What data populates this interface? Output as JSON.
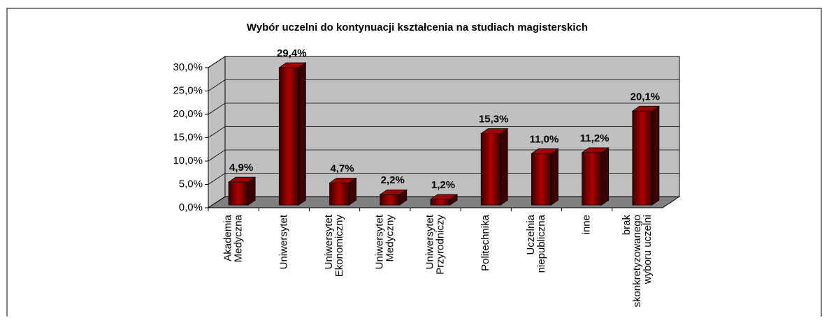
{
  "chart_data": {
    "type": "bar3d",
    "title": "Wybór uczelni do kontynuacji kształcenia na studiach magisterskich",
    "categories": [
      "Akademia\nMedyczna",
      "Uniwersytet",
      "Uniwersytet\nEkonomiczny",
      "Uniwersytet\nMedyczny",
      "Uniwersytet\nPrzyrodniczy",
      "Politechnika",
      "Uczelnia\nniepubliczna",
      "inne",
      "brak\nskonkretyzowanego\nwyboru uczelni"
    ],
    "values": [
      4.9,
      29.4,
      4.7,
      2.2,
      1.2,
      15.3,
      11.0,
      11.2,
      20.1
    ],
    "value_labels": [
      "4,9%",
      "29,4%",
      "4,7%",
      "2,2%",
      "1,2%",
      "15,3%",
      "11,0%",
      "11,2%",
      "20,1%"
    ],
    "color": "#8b0000",
    "ylim": [
      0,
      30
    ],
    "yticks": [
      {
        "value": 0,
        "label": "0,0%"
      },
      {
        "value": 5,
        "label": "5,0%"
      },
      {
        "value": 10,
        "label": "10,0%"
      },
      {
        "value": 15,
        "label": "15,0%"
      },
      {
        "value": 20,
        "label": "20,0%"
      },
      {
        "value": 25,
        "label": "25,0%"
      },
      {
        "value": 30,
        "label": "30,0%"
      }
    ],
    "grid": true
  }
}
